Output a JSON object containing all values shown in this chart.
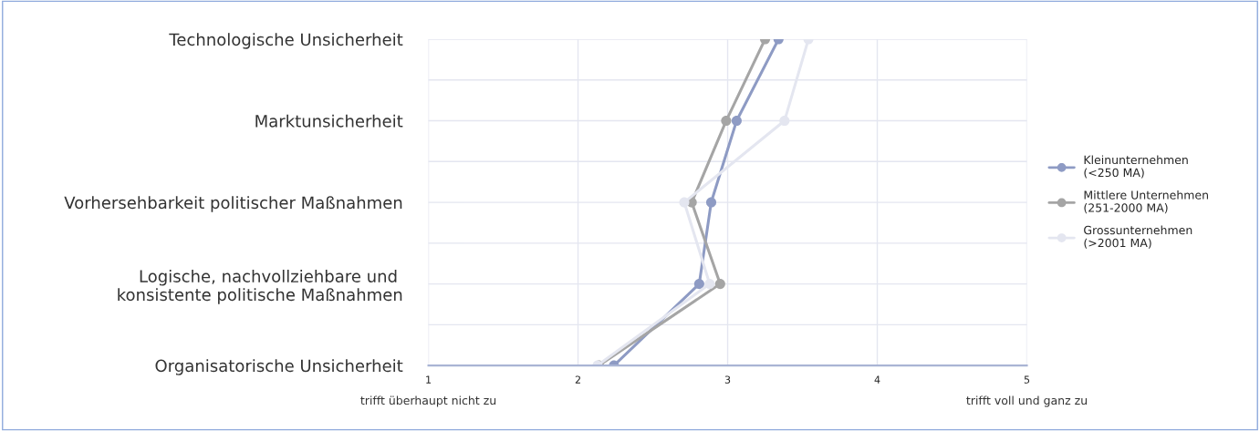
{
  "chart_data": {
    "type": "line",
    "orientation": "horizontal",
    "categories": [
      "Technologische Unsicherheit",
      "Marktunsicherheit",
      "Vorhersehbarkeit politischer Maßnahmen",
      "Logische, nachvollziehbare und \nkonsistente politische Maßnahmen",
      "Organisatorische Unsicherheit"
    ],
    "series": [
      {
        "name": "Kleinunternehmen\n(<250 MA)",
        "color": "#8e9bc4",
        "values": [
          3.34,
          3.06,
          2.89,
          2.81,
          2.24
        ]
      },
      {
        "name": "Mittlere Unternehmen\n(251-2000 MA)",
        "color": "#a5a5a5",
        "values": [
          3.25,
          2.99,
          2.76,
          2.95,
          2.14
        ]
      },
      {
        "name": "Grossunternehmen\n(>2001 MA)",
        "color": "#e4e6f0",
        "values": [
          3.54,
          3.38,
          2.71,
          2.88,
          2.13
        ]
      }
    ],
    "xlim": [
      1,
      5
    ],
    "xticks": [
      1,
      2,
      3,
      4,
      5
    ],
    "annotations": [
      "trifft überhaupt nicht zu",
      "trifft voll und ganz zu"
    ],
    "grid": true,
    "legend": "right",
    "marker": "circle",
    "line_style": "solid"
  }
}
